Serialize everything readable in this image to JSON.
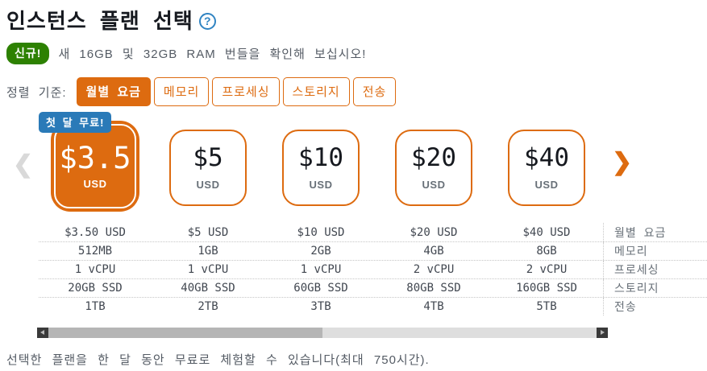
{
  "page": {
    "title": "인스턴스 플랜 선택",
    "help_icon_glyph": "?",
    "new_badge": "신규!",
    "new_text": "새 16GB 및 32GB RAM 번들을 확인해 보십시오!",
    "footer_note": "선택한 플랜을 한 달 동안 무료로 체험할 수 있습니다(최대 750시간)."
  },
  "sort": {
    "label": "정렬 기준:",
    "tabs": [
      {
        "label": "월별 요금",
        "selected": true
      },
      {
        "label": "메모리",
        "selected": false
      },
      {
        "label": "프로세싱",
        "selected": false
      },
      {
        "label": "스토리지",
        "selected": false
      },
      {
        "label": "전송",
        "selected": false
      }
    ]
  },
  "carousel": {
    "prev_glyph": "❮",
    "next_glyph": "❯",
    "free_badge": "첫 달 무료!",
    "plans": [
      {
        "price": "$3.5",
        "currency": "USD",
        "selected": true
      },
      {
        "price": "$5",
        "currency": "USD",
        "selected": false
      },
      {
        "price": "$10",
        "currency": "USD",
        "selected": false
      },
      {
        "price": "$20",
        "currency": "USD",
        "selected": false
      },
      {
        "price": "$40",
        "currency": "USD",
        "selected": false
      }
    ]
  },
  "spec_table": {
    "rows": [
      {
        "label": "월별 요금",
        "values": [
          "$3.50 USD",
          "$5 USD",
          "$10 USD",
          "$20 USD",
          "$40 USD"
        ]
      },
      {
        "label": "메모리",
        "values": [
          "512MB",
          "1GB",
          "2GB",
          "4GB",
          "8GB"
        ]
      },
      {
        "label": "프로세싱",
        "values": [
          "1 vCPU",
          "1 vCPU",
          "1 vCPU",
          "2 vCPU",
          "2 vCPU"
        ]
      },
      {
        "label": "스토리지",
        "values": [
          "20GB SSD",
          "40GB SSD",
          "60GB SSD",
          "80GB SSD",
          "160GB SSD"
        ]
      },
      {
        "label": "전송",
        "values": [
          "1TB",
          "2TB",
          "3TB",
          "4TB",
          "5TB"
        ]
      }
    ]
  },
  "scrollbar": {
    "thumb_percent": 50
  },
  "colors": {
    "accent_orange": "#dd6b10",
    "badge_blue": "#2a7ab8",
    "badge_green": "#2d8102",
    "help_blue": "#3184c2",
    "text_primary": "#16191f",
    "text_secondary": "#545b64"
  }
}
